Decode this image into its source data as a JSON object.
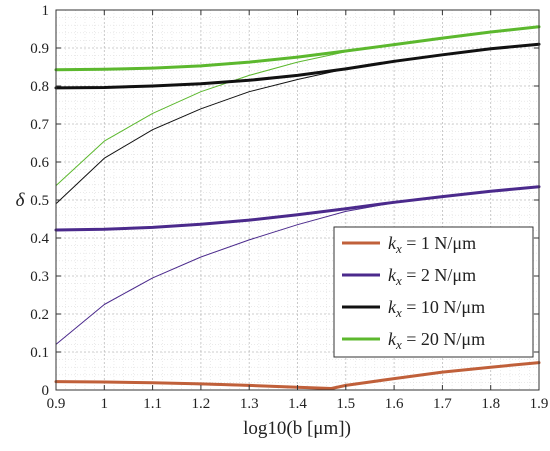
{
  "chart_data": {
    "type": "line",
    "xlabel": "log10(b [μm])",
    "ylabel": "δ",
    "xlim": [
      0.9,
      1.9
    ],
    "ylim": [
      0,
      1
    ],
    "x_ticks": [
      "0.9",
      "1",
      "1.1",
      "1.2",
      "1.3",
      "1.4",
      "1.5",
      "1.6",
      "1.7",
      "1.8",
      "1.9"
    ],
    "y_ticks": [
      "0",
      "0.1",
      "0.2",
      "0.3",
      "0.4",
      "0.5",
      "0.6",
      "0.7",
      "0.8",
      "0.9",
      "1"
    ],
    "grid": "on (dotted, major and minor)",
    "legend_position": "bottom-right",
    "legend": [
      {
        "name": "k",
        "sub": "x",
        "rest": " = 1 N/μm",
        "color": "#c0603a"
      },
      {
        "name": "k",
        "sub": "x",
        "rest": " = 2 N/μm",
        "color": "#4b2a8c"
      },
      {
        "name": "k",
        "sub": "x",
        "rest": " = 10 N/μm",
        "color": "#111111"
      },
      {
        "name": "k",
        "sub": "x",
        "rest": " = 20 N/μm",
        "color": "#5cb82e"
      }
    ],
    "series": [
      {
        "name": "kx = 1 N/μm",
        "color": "#c0603a",
        "style": "thick",
        "x": [
          0.9,
          1.0,
          1.1,
          1.2,
          1.3,
          1.4,
          1.47,
          1.5,
          1.6,
          1.7,
          1.8,
          1.9
        ],
        "y": [
          0.022,
          0.021,
          0.019,
          0.016,
          0.012,
          0.007,
          0.004,
          0.012,
          0.03,
          0.047,
          0.06,
          0.072
        ]
      },
      {
        "name": "kx = 1 N/μm (pink shadow)",
        "color": "#ef9ab8",
        "style": "thin",
        "x": [
          0.9,
          1.0,
          1.1,
          1.2,
          1.3,
          1.4,
          1.47,
          1.5,
          1.6,
          1.7,
          1.8,
          1.9
        ],
        "y": [
          0.02,
          0.02,
          0.018,
          0.014,
          0.01,
          0.005,
          0.003,
          0.011,
          0.029,
          0.046,
          0.059,
          0.07
        ]
      },
      {
        "name": "kx = 2 N/μm",
        "color": "#4b2a8c",
        "style": "thick",
        "x": [
          0.9,
          1.0,
          1.1,
          1.2,
          1.3,
          1.4,
          1.5,
          1.6,
          1.7,
          1.8,
          1.9
        ],
        "y": [
          0.421,
          0.423,
          0.428,
          0.436,
          0.447,
          0.461,
          0.477,
          0.494,
          0.509,
          0.523,
          0.535
        ]
      },
      {
        "name": "kx = 2 N/μm (thin)",
        "color": "#4b2a8c",
        "style": "thin",
        "x": [
          0.9,
          1.0,
          1.1,
          1.2,
          1.3,
          1.4,
          1.5,
          1.6,
          1.7,
          1.8,
          1.9
        ],
        "y": [
          0.12,
          0.225,
          0.295,
          0.35,
          0.395,
          0.435,
          0.47,
          0.493,
          0.51,
          0.523,
          0.535
        ]
      },
      {
        "name": "kx = 10 N/μm",
        "color": "#111111",
        "style": "thick",
        "x": [
          0.9,
          1.0,
          1.1,
          1.2,
          1.3,
          1.4,
          1.5,
          1.6,
          1.7,
          1.8,
          1.9
        ],
        "y": [
          0.795,
          0.796,
          0.8,
          0.806,
          0.815,
          0.828,
          0.845,
          0.865,
          0.882,
          0.898,
          0.91
        ]
      },
      {
        "name": "kx = 10 N/μm (thin)",
        "color": "#111111",
        "style": "thin",
        "x": [
          0.9,
          1.0,
          1.1,
          1.2,
          1.3,
          1.4,
          1.5,
          1.6,
          1.7,
          1.8,
          1.9
        ],
        "y": [
          0.49,
          0.61,
          0.685,
          0.74,
          0.785,
          0.817,
          0.845,
          0.865,
          0.882,
          0.898,
          0.91
        ]
      },
      {
        "name": "kx = 20 N/μm",
        "color": "#5cb82e",
        "style": "thick",
        "x": [
          0.9,
          1.0,
          1.1,
          1.2,
          1.3,
          1.4,
          1.5,
          1.6,
          1.7,
          1.8,
          1.9
        ],
        "y": [
          0.843,
          0.844,
          0.847,
          0.853,
          0.863,
          0.876,
          0.892,
          0.909,
          0.926,
          0.942,
          0.956
        ]
      },
      {
        "name": "kx = 20 N/μm (thin)",
        "color": "#5cb82e",
        "style": "thin",
        "x": [
          0.9,
          1.0,
          1.1,
          1.2,
          1.3,
          1.4,
          1.5,
          1.6,
          1.7,
          1.8,
          1.9
        ],
        "y": [
          0.538,
          0.655,
          0.728,
          0.785,
          0.828,
          0.863,
          0.89,
          0.909,
          0.926,
          0.942,
          0.956
        ]
      }
    ]
  }
}
